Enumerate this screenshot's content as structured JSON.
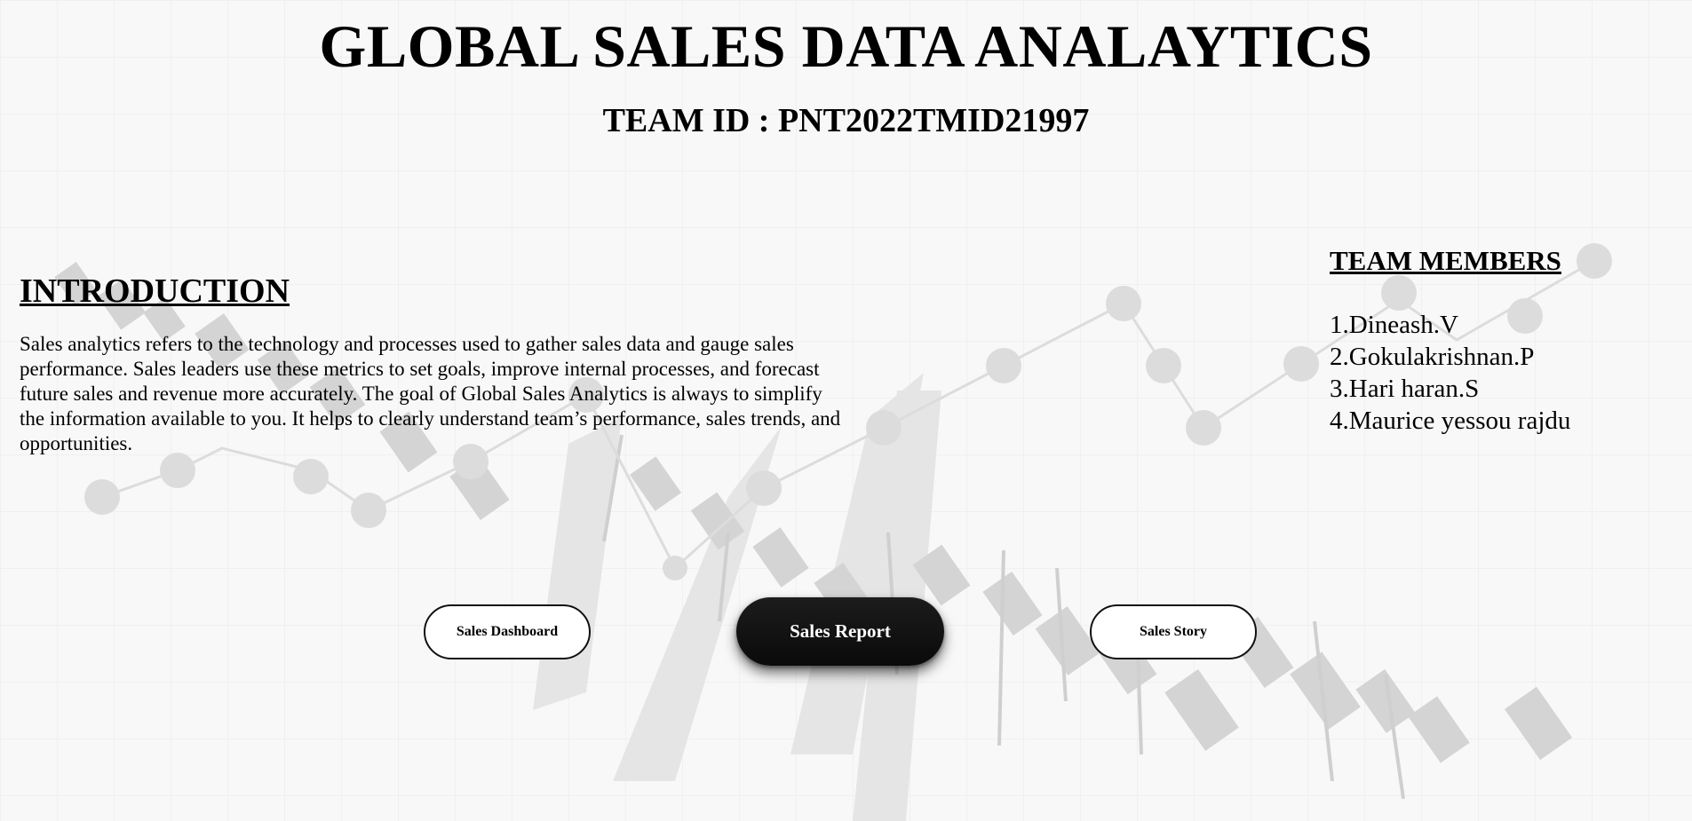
{
  "header": {
    "title": "GLOBAL SALES DATA ANALAYTICS",
    "team_id": "TEAM ID : PNT2022TMID21997"
  },
  "introduction": {
    "heading": "INTRODUCTION",
    "text": "Sales analytics refers to the technology and processes used to gather sales data and gauge sales performance. Sales leaders use these metrics to set goals, improve internal processes, and forecast future sales and revenue more accurately. The goal of Global Sales Analytics is always to simplify the information available to you. It helps to clearly understand team’s performance, sales trends, and opportunities."
  },
  "team": {
    "heading": "TEAM MEMBERS",
    "members": [
      "1.Dineash.V",
      "2.Gokulakrishnan.P",
      "3.Hari haran.S",
      "4.Maurice yessou rajdu"
    ]
  },
  "nav": {
    "dashboard_label": "Sales Dashboard",
    "report_label": "Sales Report",
    "story_label": "Sales Story"
  },
  "colors": {
    "background": "#f7f7f7",
    "primary_button": "#111111",
    "text": "#000000"
  }
}
